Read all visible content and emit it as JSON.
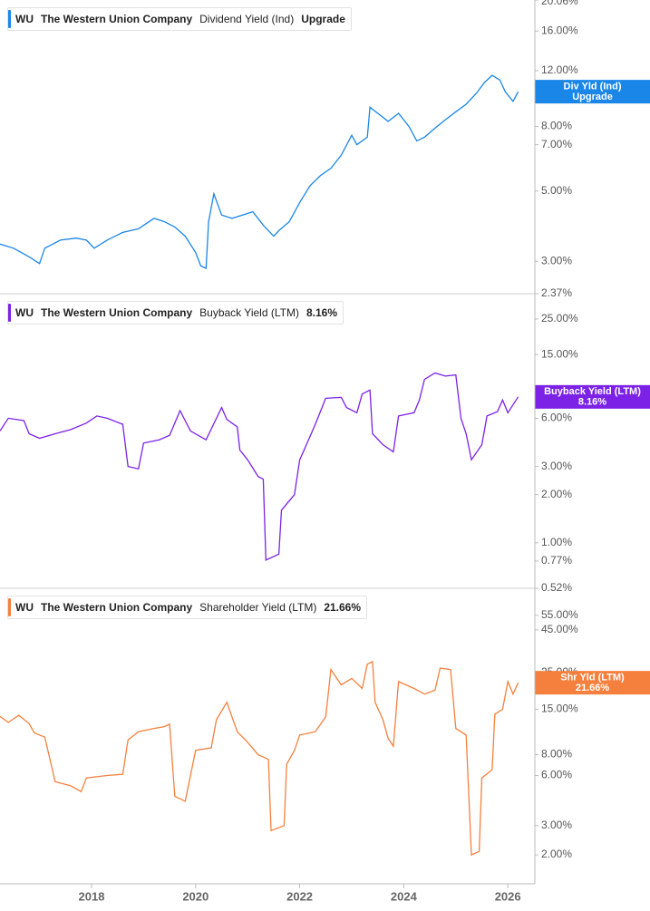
{
  "chart_data": [
    {
      "type": "line",
      "ticker": "WU",
      "company": "The Western Union Company",
      "log": true,
      "xlim": [
        2016.24,
        2026.52
      ],
      "ylim": [
        2.37,
        20.06
      ],
      "yticks": [
        {
          "value": 20.06,
          "label": "20.06%"
        },
        {
          "value": 16,
          "label": "16.00%"
        },
        {
          "value": 12,
          "label": "12.00%"
        },
        {
          "value": 8,
          "label": "8.00%"
        },
        {
          "value": 7,
          "label": "7.00%"
        },
        {
          "value": 5,
          "label": "5.00%"
        },
        {
          "value": 3,
          "label": "3.00%"
        },
        {
          "value": 2.37,
          "label": "2.37%"
        }
      ],
      "series": [
        {
          "name": "Dividend Yield (Ind)",
          "short_name": "Div Yld (Ind)",
          "latest_label": "Upgrade",
          "color": "#1a86e8",
          "x": [
            2016.24,
            2016.5,
            2016.8,
            2017.0,
            2017.1,
            2017.4,
            2017.7,
            2017.9,
            2018.05,
            2018.3,
            2018.6,
            2018.9,
            2019.2,
            2019.4,
            2019.6,
            2019.8,
            2020.0,
            2020.1,
            2020.2,
            2020.25,
            2020.35,
            2020.5,
            2020.7,
            2020.9,
            2021.1,
            2021.3,
            2021.5,
            2021.6,
            2021.8,
            2022.0,
            2022.2,
            2022.4,
            2022.6,
            2022.8,
            2023.0,
            2023.1,
            2023.3,
            2023.35,
            2023.5,
            2023.7,
            2023.9,
            2024.1,
            2024.25,
            2024.4,
            2024.6,
            2024.8,
            2025.0,
            2025.2,
            2025.4,
            2025.55,
            2025.7,
            2025.85,
            2025.95,
            2026.1,
            2026.2
          ],
          "values": [
            3.4,
            3.3,
            3.1,
            2.95,
            3.3,
            3.5,
            3.55,
            3.5,
            3.3,
            3.5,
            3.7,
            3.8,
            4.1,
            4.0,
            3.85,
            3.6,
            3.2,
            2.9,
            2.85,
            4.0,
            4.9,
            4.2,
            4.1,
            4.2,
            4.3,
            3.9,
            3.6,
            3.75,
            4.0,
            4.6,
            5.2,
            5.6,
            5.9,
            6.5,
            7.5,
            7.0,
            7.4,
            9.2,
            8.8,
            8.3,
            8.8,
            8.0,
            7.2,
            7.4,
            7.9,
            8.4,
            8.9,
            9.4,
            10.2,
            11.0,
            11.6,
            11.2,
            10.3,
            9.6,
            10.3
          ]
        }
      ]
    },
    {
      "type": "line",
      "ticker": "WU",
      "company": "The Western Union Company",
      "log": true,
      "xlim": [
        2016.24,
        2026.52
      ],
      "ylim": [
        0.52,
        36
      ],
      "yticks": [
        {
          "value": 25,
          "label": "25.00%"
        },
        {
          "value": 15,
          "label": "15.00%"
        },
        {
          "value": 6,
          "label": "6.00%"
        },
        {
          "value": 3,
          "label": "3.00%"
        },
        {
          "value": 2,
          "label": "2.00%"
        },
        {
          "value": 1,
          "label": "1.00%"
        },
        {
          "value": 0.77,
          "label": "0.77%"
        },
        {
          "value": 0.52,
          "label": "0.52%"
        }
      ],
      "series": [
        {
          "name": "Buyback Yield (LTM)",
          "short_name": "Buyback Yield (LTM)",
          "latest_label": "8.16%",
          "color": "#7b22e6",
          "x": [
            2016.24,
            2016.4,
            2016.7,
            2016.8,
            2017.0,
            2017.3,
            2017.6,
            2017.9,
            2018.1,
            2018.3,
            2018.6,
            2018.7,
            2018.9,
            2019.0,
            2019.3,
            2019.5,
            2019.7,
            2019.9,
            2020.2,
            2020.4,
            2020.5,
            2020.6,
            2020.8,
            2020.85,
            2021.0,
            2021.2,
            2021.3,
            2021.35,
            2021.6,
            2021.65,
            2021.9,
            2022.0,
            2022.1,
            2022.3,
            2022.5,
            2022.8,
            2022.9,
            2023.1,
            2023.2,
            2023.35,
            2023.4,
            2023.6,
            2023.8,
            2023.9,
            2024.2,
            2024.3,
            2024.4,
            2024.6,
            2024.8,
            2025.0,
            2025.1,
            2025.2,
            2025.3,
            2025.5,
            2025.6,
            2025.8,
            2025.9,
            2026.0,
            2026.2
          ],
          "values": [
            5.0,
            6.0,
            5.8,
            4.8,
            4.5,
            4.8,
            5.1,
            5.6,
            6.2,
            6.0,
            5.5,
            3.0,
            2.9,
            4.2,
            4.4,
            4.7,
            6.7,
            5.0,
            4.4,
            6.0,
            7.0,
            5.9,
            5.3,
            3.8,
            3.3,
            2.6,
            2.5,
            0.78,
            0.85,
            1.6,
            2.0,
            3.3,
            3.9,
            5.5,
            8.0,
            8.1,
            7.0,
            6.5,
            8.5,
            9.0,
            4.8,
            4.1,
            3.7,
            6.2,
            6.5,
            7.8,
            10.5,
            11.5,
            11.0,
            11.2,
            6.0,
            4.8,
            3.3,
            4.1,
            6.2,
            6.6,
            7.8,
            6.5,
            8.16
          ]
        }
      ]
    },
    {
      "type": "line",
      "ticker": "WU",
      "company": "The Western Union Company",
      "log": true,
      "xlim": [
        2016.24,
        2026.52
      ],
      "ylim": [
        1.34,
        80
      ],
      "xticks": [
        2018,
        2020,
        2022,
        2024,
        2026
      ],
      "yticks": [
        {
          "value": 55,
          "label": "55.00%"
        },
        {
          "value": 45,
          "label": "45.00%"
        },
        {
          "value": 25,
          "label": "25.00%"
        },
        {
          "value": 15,
          "label": "15.00%"
        },
        {
          "value": 8,
          "label": "8.00%"
        },
        {
          "value": 6,
          "label": "6.00%"
        },
        {
          "value": 3,
          "label": "3.00%"
        },
        {
          "value": 2,
          "label": "2.00%"
        }
      ],
      "series": [
        {
          "name": "Shareholder Yield (LTM)",
          "short_name": "Shr Yld (LTM)",
          "latest_label": "21.66%",
          "color": "#f5803e",
          "x": [
            2016.24,
            2016.4,
            2016.6,
            2016.8,
            2016.9,
            2017.1,
            2017.3,
            2017.6,
            2017.8,
            2017.9,
            2018.3,
            2018.6,
            2018.7,
            2018.9,
            2019.2,
            2019.4,
            2019.5,
            2019.6,
            2019.8,
            2020.0,
            2020.3,
            2020.4,
            2020.6,
            2020.8,
            2021.0,
            2021.2,
            2021.4,
            2021.45,
            2021.7,
            2021.75,
            2021.9,
            2022.0,
            2022.3,
            2022.5,
            2022.6,
            2022.8,
            2023.0,
            2023.2,
            2023.3,
            2023.4,
            2023.45,
            2023.6,
            2023.7,
            2023.8,
            2023.9,
            2024.2,
            2024.4,
            2024.6,
            2024.7,
            2024.9,
            2025.0,
            2025.2,
            2025.3,
            2025.45,
            2025.5,
            2025.7,
            2025.75,
            2025.9,
            2026.0,
            2026.1,
            2026.2
          ],
          "values": [
            13.6,
            12.5,
            13.8,
            12.3,
            10.8,
            10.2,
            5.5,
            5.2,
            4.8,
            5.8,
            6.0,
            6.1,
            9.8,
            11.0,
            11.5,
            11.8,
            12.2,
            4.5,
            4.2,
            8.5,
            8.8,
            13.0,
            16.5,
            11.0,
            9.5,
            8.0,
            7.5,
            2.8,
            3.0,
            7.0,
            8.5,
            10.5,
            11.0,
            13.5,
            26.0,
            21.0,
            23.0,
            20.0,
            28.0,
            29.0,
            16.5,
            13.0,
            10.0,
            9.0,
            22.0,
            20.0,
            18.5,
            19.5,
            26.5,
            26.0,
            11.5,
            10.5,
            2.0,
            2.1,
            5.8,
            6.5,
            14.0,
            15.0,
            22.0,
            18.5,
            21.66
          ]
        }
      ]
    }
  ]
}
